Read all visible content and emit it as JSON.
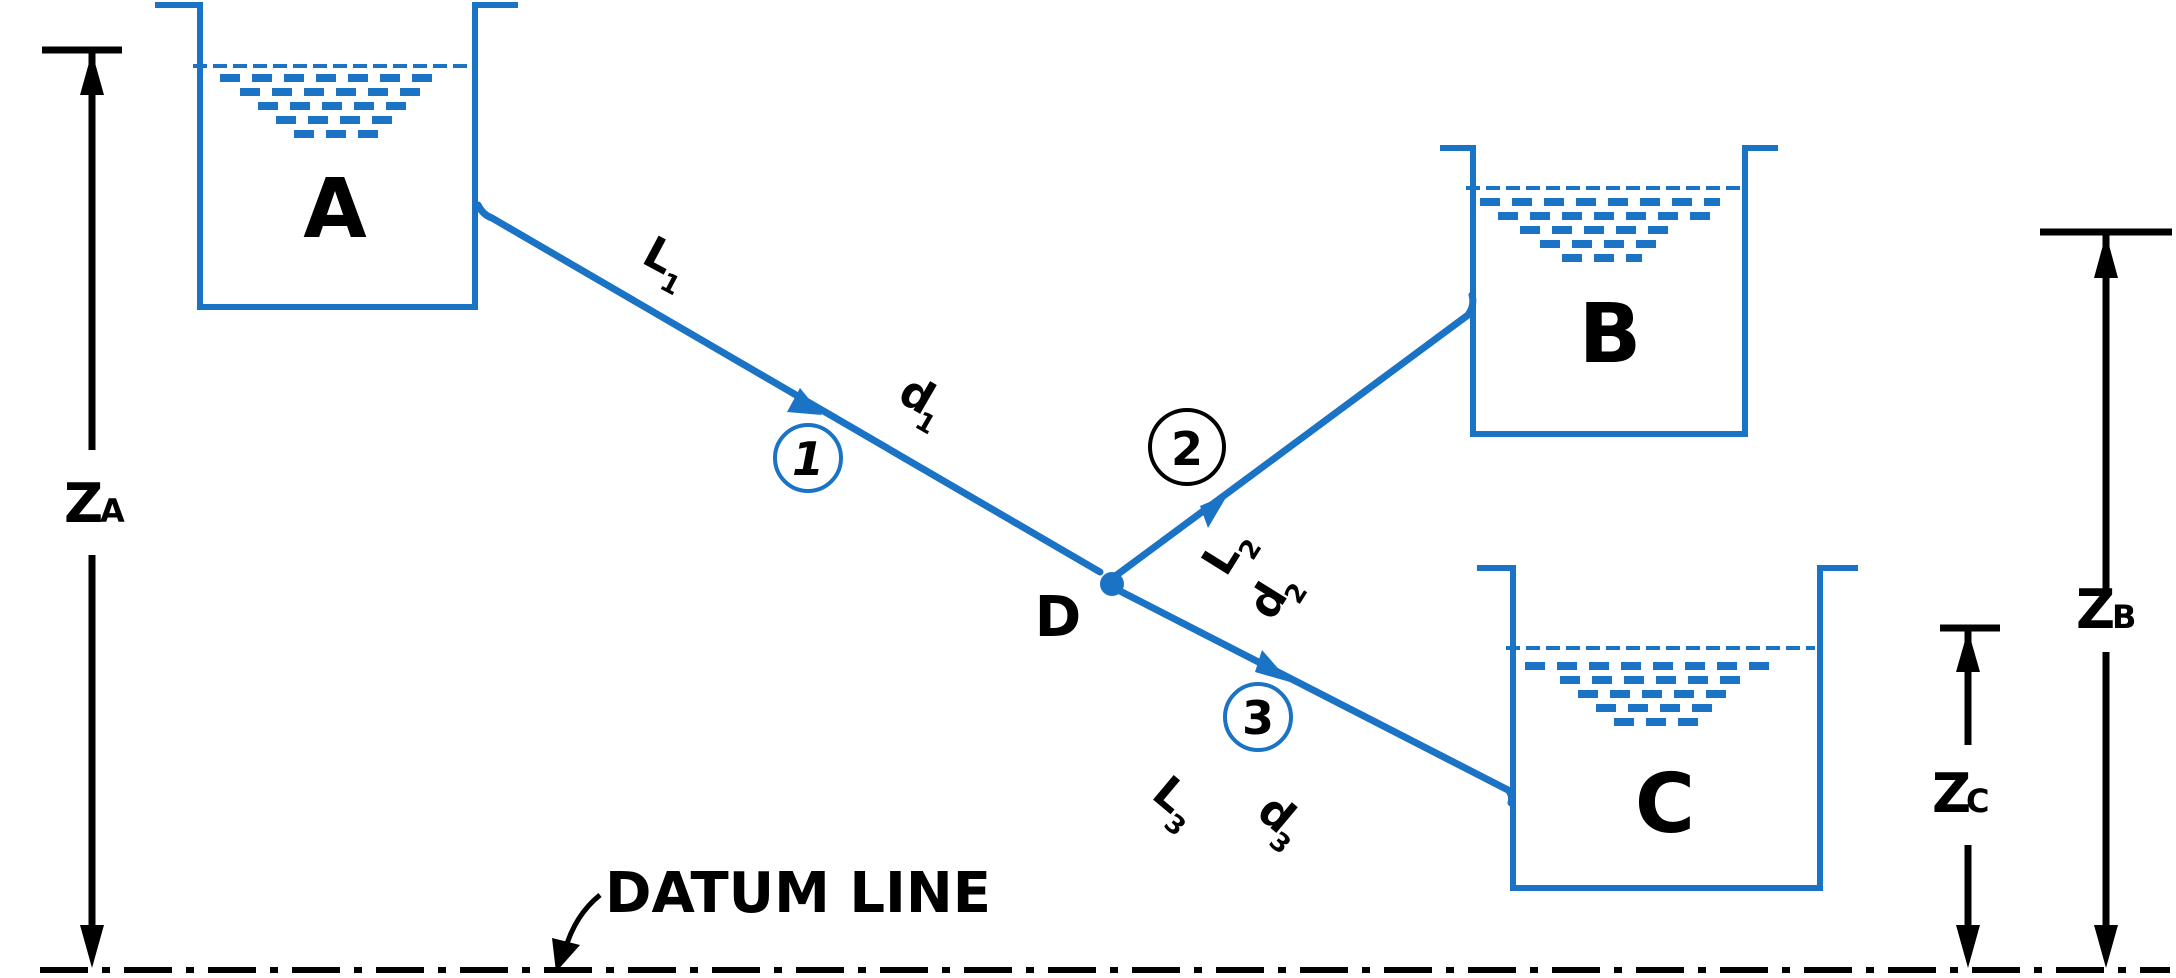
{
  "tanks": {
    "a_label": "A",
    "b_label": "B",
    "c_label": "C"
  },
  "junction_label": "D",
  "pipes": {
    "pipe1": {
      "number": "1",
      "length_main": "L",
      "length_sub": "1",
      "dia_main": "d",
      "dia_sub": "1"
    },
    "pipe2": {
      "number": "2",
      "length_main": "L",
      "length_sub": "2",
      "dia_main": "d",
      "dia_sub": "2"
    },
    "pipe3": {
      "number": "3",
      "length_main": "L",
      "length_sub": "3",
      "dia_main": "d",
      "dia_sub": "3"
    }
  },
  "elevations": {
    "za_main": "Z",
    "za_sub": "A",
    "zb_main": "Z",
    "zb_sub": "B",
    "zc_main": "Z",
    "zc_sub": "C"
  },
  "datum_label": "DATUM LINE",
  "colors": {
    "pipe": "#1a73c4",
    "ink": "#000000"
  }
}
